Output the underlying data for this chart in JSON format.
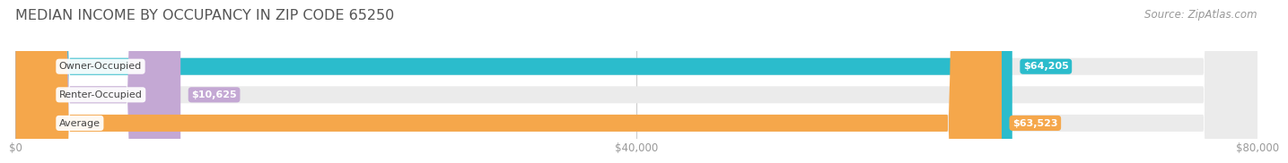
{
  "title": "MEDIAN INCOME BY OCCUPANCY IN ZIP CODE 65250",
  "source": "Source: ZipAtlas.com",
  "categories": [
    "Owner-Occupied",
    "Renter-Occupied",
    "Average"
  ],
  "values": [
    64205,
    10625,
    63523
  ],
  "labels": [
    "$64,205",
    "$10,625",
    "$63,523"
  ],
  "bar_colors": [
    "#2bbccc",
    "#c4a8d4",
    "#f5a74b"
  ],
  "bar_bg_color": "#ebebeb",
  "xlim": [
    0,
    80000
  ],
  "xticks": [
    0,
    40000,
    80000
  ],
  "xtick_labels": [
    "$0",
    "$40,000",
    "$80,000"
  ],
  "title_fontsize": 11.5,
  "source_fontsize": 8.5,
  "label_fontsize": 8,
  "category_fontsize": 8,
  "background_color": "#ffffff",
  "grid_color": "#cccccc",
  "tick_color": "#999999"
}
